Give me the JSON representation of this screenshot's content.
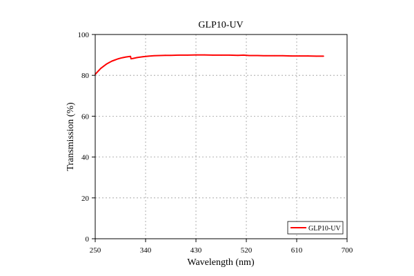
{
  "chart_data": {
    "type": "line",
    "title": "GLP10-UV",
    "xlabel": "Wavelength (nm)",
    "ylabel": "Transmission (%)",
    "xlim": [
      250,
      700
    ],
    "ylim": [
      0,
      100
    ],
    "x_ticks": [
      250,
      340,
      430,
      520,
      610,
      700
    ],
    "y_ticks": [
      0,
      20,
      40,
      60,
      80,
      100
    ],
    "grid": true,
    "grid_style": "dotted",
    "legend_position": "bottom-right",
    "series": [
      {
        "name": "GLP10-UV",
        "color": "#ff0000",
        "x": [
          250,
          255,
          260,
          265,
          270,
          275,
          280,
          285,
          290,
          295,
          300,
          305,
          310,
          313,
          314,
          318,
          325,
          335,
          345,
          355,
          365,
          375,
          385,
          400,
          415,
          430,
          445,
          460,
          475,
          490,
          505,
          515,
          525,
          540,
          555,
          570,
          585,
          600,
          615,
          630,
          645,
          658
        ],
        "y": [
          80.5,
          82.0,
          83.4,
          84.5,
          85.5,
          86.3,
          87.0,
          87.5,
          88.0,
          88.4,
          88.7,
          89.0,
          89.2,
          89.3,
          88.1,
          88.3,
          88.7,
          89.1,
          89.4,
          89.6,
          89.7,
          89.8,
          89.8,
          89.9,
          89.9,
          90.0,
          90.0,
          89.9,
          89.9,
          89.9,
          89.8,
          89.9,
          89.7,
          89.7,
          89.6,
          89.6,
          89.6,
          89.5,
          89.5,
          89.5,
          89.4,
          89.4
        ]
      }
    ]
  }
}
